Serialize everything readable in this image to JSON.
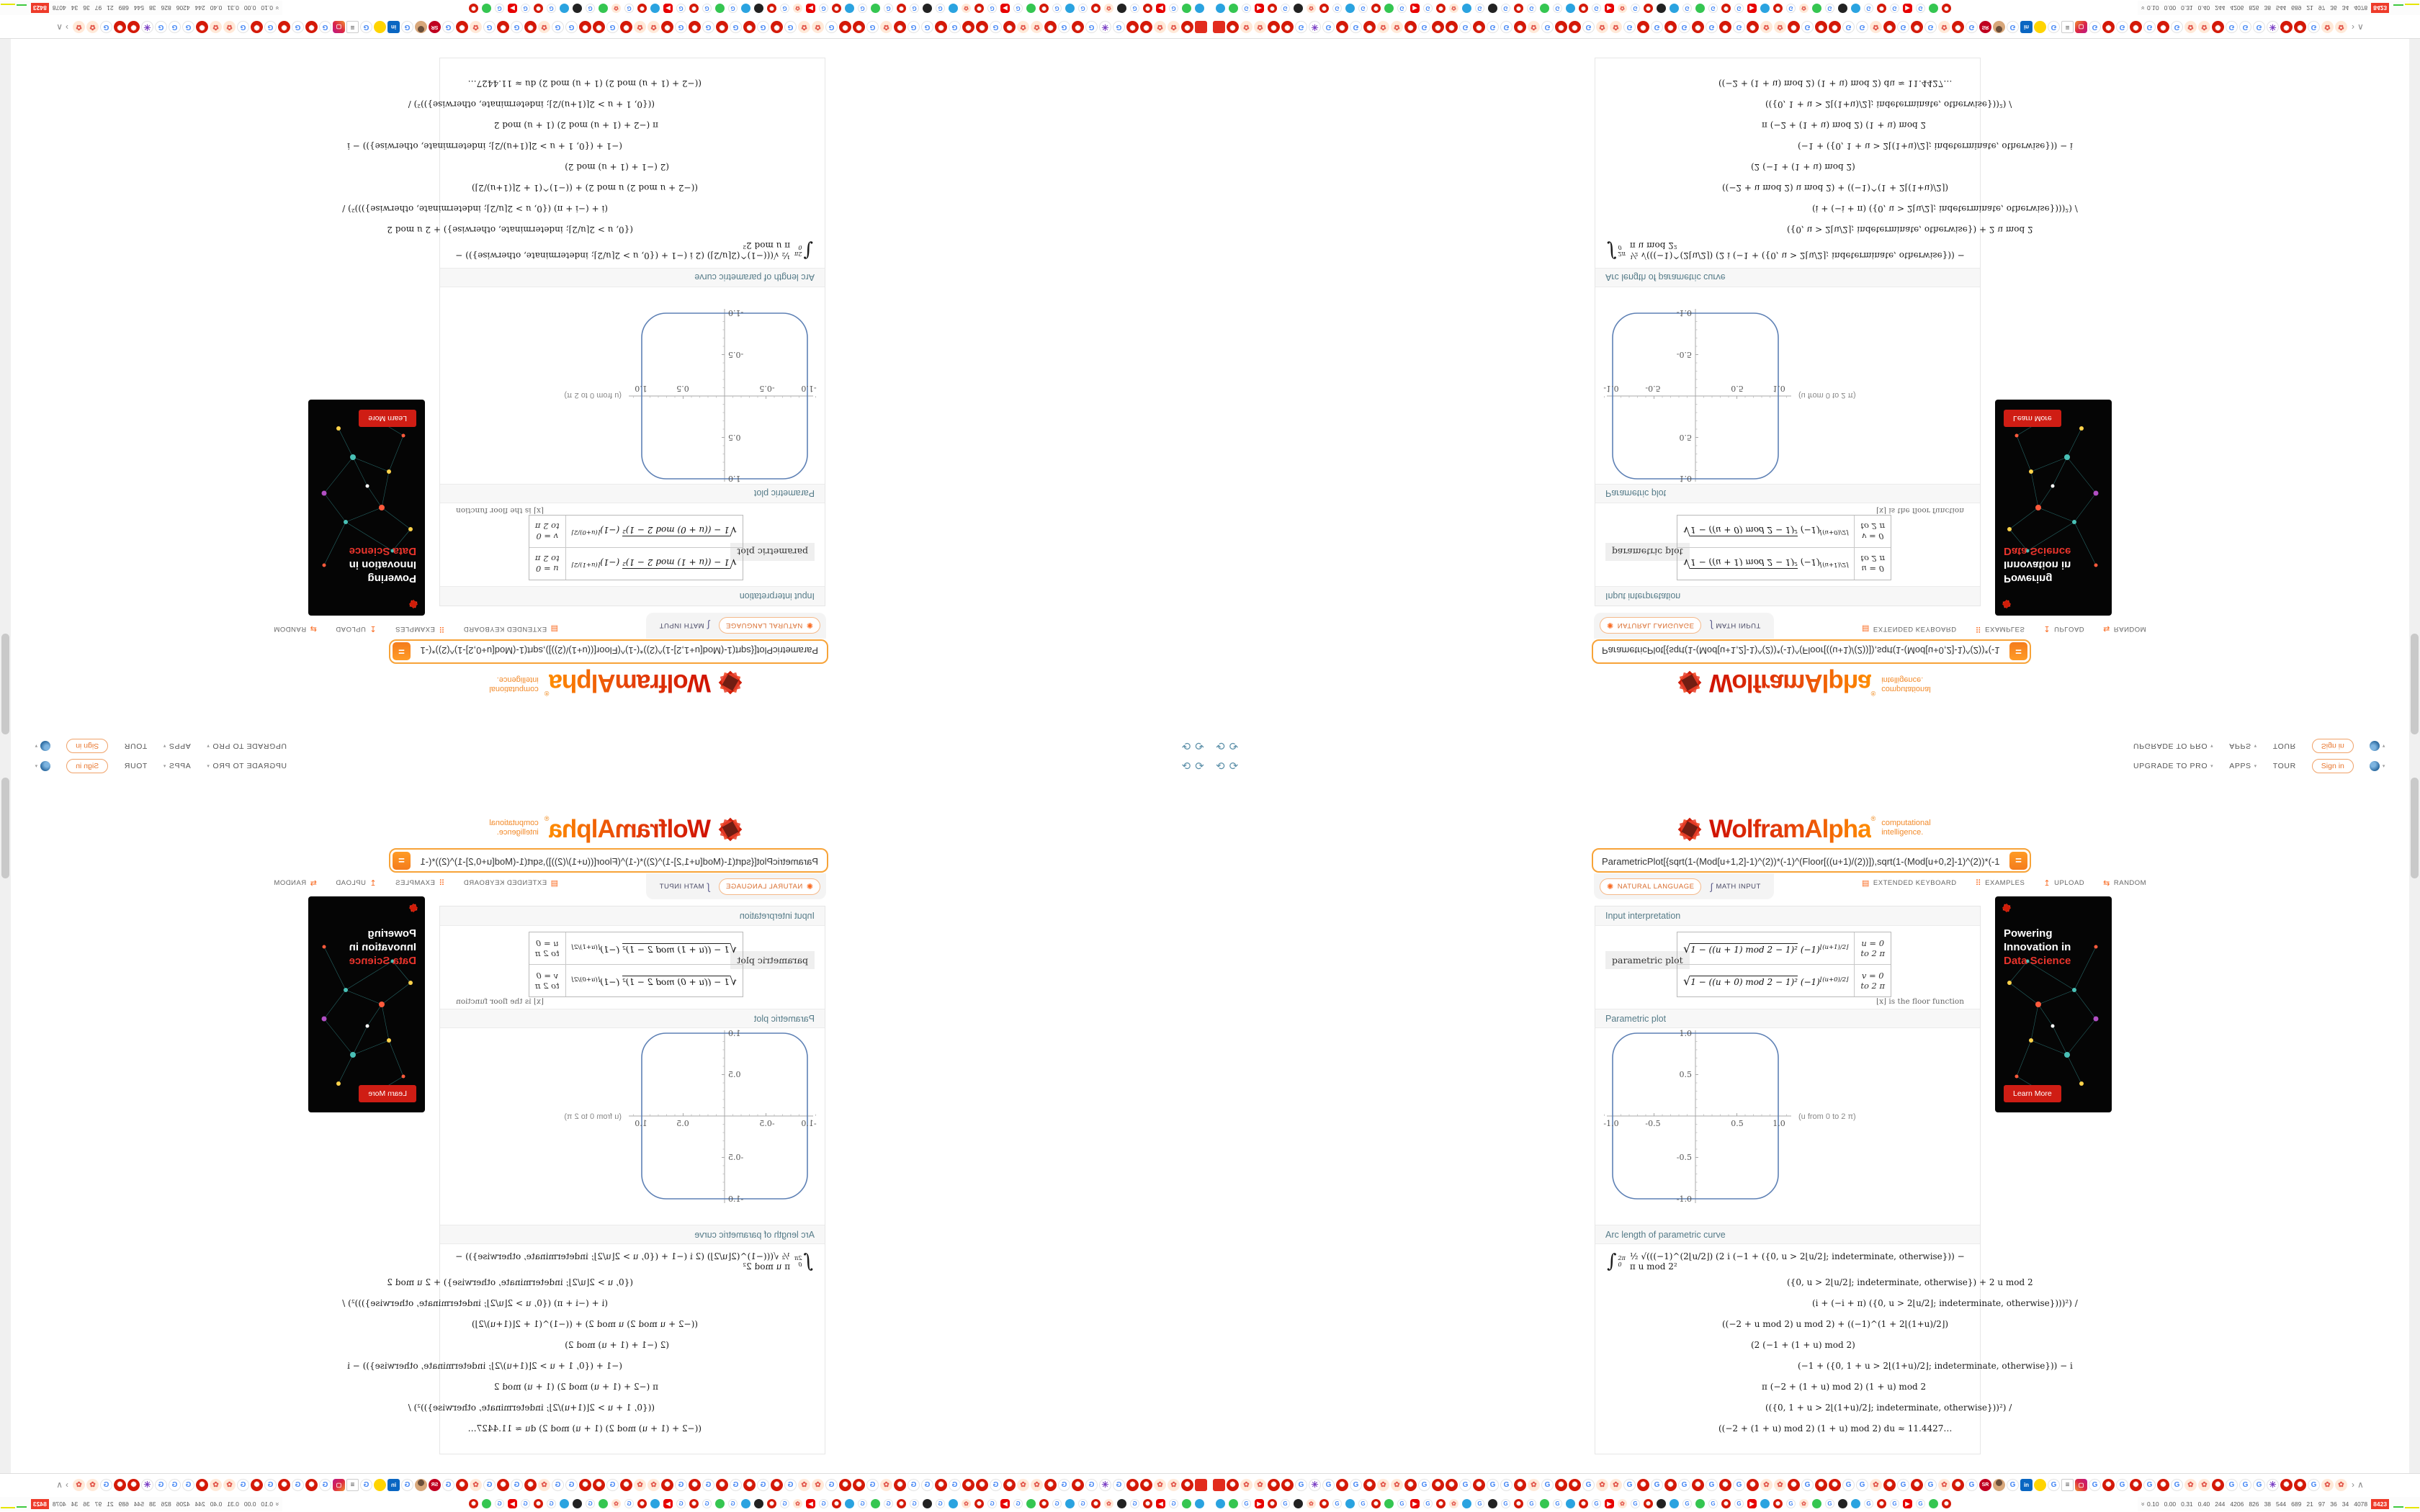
{
  "nav": {
    "items": [
      {
        "label": "UPGRADE TO PRO",
        "caret": true
      },
      {
        "label": "APPS",
        "caret": true
      },
      {
        "label": "TOUR",
        "caret": false
      }
    ],
    "sign_in": "Sign in",
    "caret_glyph": "▾",
    "history_back_icon": "⟲",
    "history_forward_icon": "⟳"
  },
  "header": {
    "logo_text": "WolframAlpha",
    "registered": "®",
    "tagline_line1": "computational",
    "tagline_line2": "intelligence."
  },
  "query": {
    "input_value": "ParametricPlot[{sqrt(1-(Mod[u+1,2]-1)^(2))*(-1)^(Floor[((u+1)/(2))]),sqrt(1-(Mod[u+0,2]-1)^(2))*(-1)^(Floor",
    "compute_label": "="
  },
  "input_modes": {
    "natural_language": "NATURAL LANGUAGE",
    "math_input": "MATH INPUT",
    "extended_keyboard": "EXTENDED KEYBOARD",
    "examples": "EXAMPLES",
    "upload": "UPLOAD",
    "random": "RANDOM",
    "spark_icon": "✺",
    "integral_icon": "∫",
    "keyboard_icon": "▤",
    "examples_icon": "⠿",
    "upload_icon": "↥",
    "random_icon": "⇆"
  },
  "results": {
    "input_interpretation": {
      "title": "Input interpretation",
      "label": "parametric plot",
      "rows": [
        {
          "sqrt": "√",
          "radicand": "1 − ((u + 1) mod 2 − 1)²",
          "base": "(−1)",
          "exp": "⌊(u+1)/2⌋",
          "range": "u = 0 to 2 π"
        },
        {
          "sqrt": "√",
          "radicand": "1 − ((u + 0) mod 2 − 1)²",
          "base": "(−1)",
          "exp": "⌊(u+0)/2⌋",
          "range": "v = 0 to 2 π"
        }
      ]
    },
    "floor_note": "⌊x⌋ is the floor function",
    "plot_title": "Parametric plot",
    "arc": {
      "title": "Arc length of parametric curve",
      "integral_sign": "∫",
      "integral_upper": "2π",
      "integral_lower": "0",
      "line1": "½ √(((−1)^(2⌊u/2⌋) (2 i (−1 + ({0, u > 2⌊u/2⌋; indeterminate, otherwise})) − π u mod 2²",
      "lines": [
        "({0, u > 2⌊u/2⌋; indeterminate, otherwise}) + 2 u mod 2",
        "(i + (−i + π) ({0, u > 2⌊u/2⌋; indeterminate, otherwise})))²) /",
        "((−2 + u mod 2) u mod 2) + ((−1)^(1 + 2⌊(1+u)/2⌋)",
        "(2 (−1 + (1 + u) mod 2)",
        "(−1 + ({0, 1 + u > 2⌊(1+u)/2⌋; indeterminate, otherwise})) − i",
        "π (−2 + (1 + u) mod 2) (1 + u) mod 2",
        "(({0, 1 + u > 2⌊(1+u)/2⌋; indeterminate, otherwise}))²) /",
        "((−2 + (1 + u) mod 2) (1 + u) mod 2)  du ≈ 11.4427…"
      ]
    }
  },
  "ad": {
    "line1": "Powering",
    "line2": "Innovation in",
    "line3": "Data Science",
    "button": "Learn More"
  },
  "browser": {
    "tab_favicons_row1": "RWFFWWGMGWGWFFWGWWGWGGWFGWWGFFGWGWGWGWGWFFWGWWGGFWGWGFWGSUGLCGNIGWGWGWGFFWGGGMWWGFF",
    "tab_favicons_row2": "TAGYWGKFWGTGWAGYGWFTGKGWGAGTWGYFGWKTGAGWGYTWGFAGKTGWGYGAW",
    "overflow_chevrons": [
      "›",
      "∧"
    ],
    "status": {
      "expand_icon": "«",
      "values": [
        "0.10",
        "0.00",
        "0.31",
        "0.40",
        "244",
        "4206",
        "826",
        "38",
        "544",
        "689",
        "21",
        "97",
        "36",
        "34",
        "4078"
      ],
      "badge": "8423"
    }
  },
  "chart_data": {
    "type": "line",
    "title": "Parametric plot",
    "x_expr": "x(u) = sqrt(1-((u+1) mod 2 - 1)^2) * (-1)^floor((u+1)/2)",
    "y_expr": "y(u) = sqrt(1-((u+0) mod 2 - 1)^2) * (-1)^floor((u+0)/2)",
    "u_range": "0 to 2 pi",
    "annotation": "(u from 0 to 2 π)",
    "xlim": [
      -1.15,
      1.3
    ],
    "ylim": [
      -1.15,
      1.15
    ],
    "x_ticks": [
      -1.0,
      -0.5,
      0.5,
      1.0
    ],
    "y_ticks": [
      -1.0,
      -0.5,
      0.5,
      1.0
    ],
    "x_tick_labels": [
      "-1.0",
      "-0.5",
      "0.5",
      "1.0"
    ],
    "y_tick_labels": [
      "1.0",
      "0.5",
      "-0.5",
      "-1.0"
    ],
    "grid": false,
    "curve_color": "#5E81B5",
    "points": [
      [
        1,
        0
      ],
      [
        0.97,
        0.66
      ],
      [
        0.87,
        0.87
      ],
      [
        0.66,
        0.97
      ],
      [
        0,
        1
      ],
      [
        -0.66,
        0.97
      ],
      [
        -0.87,
        0.87
      ],
      [
        -0.97,
        0.66
      ],
      [
        -1,
        0
      ],
      [
        -0.97,
        -0.66
      ],
      [
        -0.87,
        -0.87
      ],
      [
        -0.66,
        -0.97
      ],
      [
        0,
        -1
      ],
      [
        0.66,
        -0.97
      ],
      [
        0.87,
        -0.87
      ],
      [
        0.97,
        -0.66
      ],
      [
        1,
        0
      ]
    ],
    "arc_length_result": "≈ 11.4427…"
  },
  "colors": {
    "accent_orange": "#f47c1c",
    "logo_red": "#cf1102",
    "plot_blue": "#5E81B5",
    "ad_red": "#e8342c",
    "badge_red": "#ee3b2a"
  }
}
